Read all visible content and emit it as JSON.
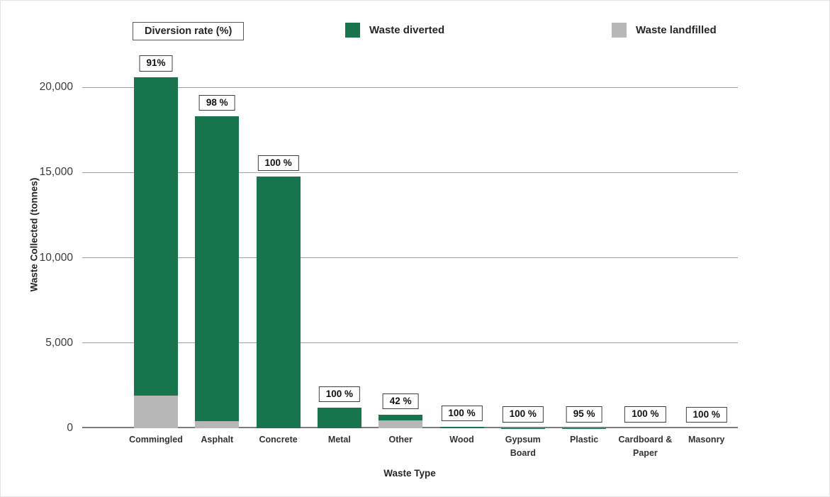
{
  "legend": {
    "diversion_label": "Diversion rate (%)",
    "series": [
      {
        "label": "Waste diverted",
        "color": "#17754e"
      },
      {
        "label": "Waste landfilled",
        "color": "#b7b7b7"
      }
    ]
  },
  "chart_data": {
    "type": "bar",
    "stacked": true,
    "title": "",
    "xlabel": "Waste Type",
    "ylabel": "Waste Collected (tonnes)",
    "ylim": [
      0,
      20000
    ],
    "grid": true,
    "legend_position": "top",
    "categories": [
      "Commingled",
      "Asphalt",
      "Concrete",
      "Metal",
      "Other",
      "Wood",
      "Gypsum Board",
      "Plastic",
      "Cardboard & Paper",
      "Masonry"
    ],
    "series": [
      {
        "name": "Waste landfilled",
        "color": "#b7b7b7",
        "values": [
          1900,
          400,
          0,
          0,
          450,
          0,
          0,
          1,
          0,
          0
        ]
      },
      {
        "name": "Waste diverted",
        "color": "#17754e",
        "values": [
          18700,
          17900,
          14750,
          1200,
          330,
          80,
          20,
          19,
          15,
          10
        ]
      }
    ],
    "diversion_rate_labels": [
      "91%",
      "98 %",
      "100 %",
      "100 %",
      "42 %",
      "100 %",
      "100 %",
      "95 %",
      "100 %",
      "100 %"
    ],
    "ytick_values": [
      0,
      5000,
      10000,
      15000,
      20000
    ],
    "ytick_labels": [
      "0",
      "5,000",
      "10,000",
      "15,000",
      "20,000"
    ]
  }
}
